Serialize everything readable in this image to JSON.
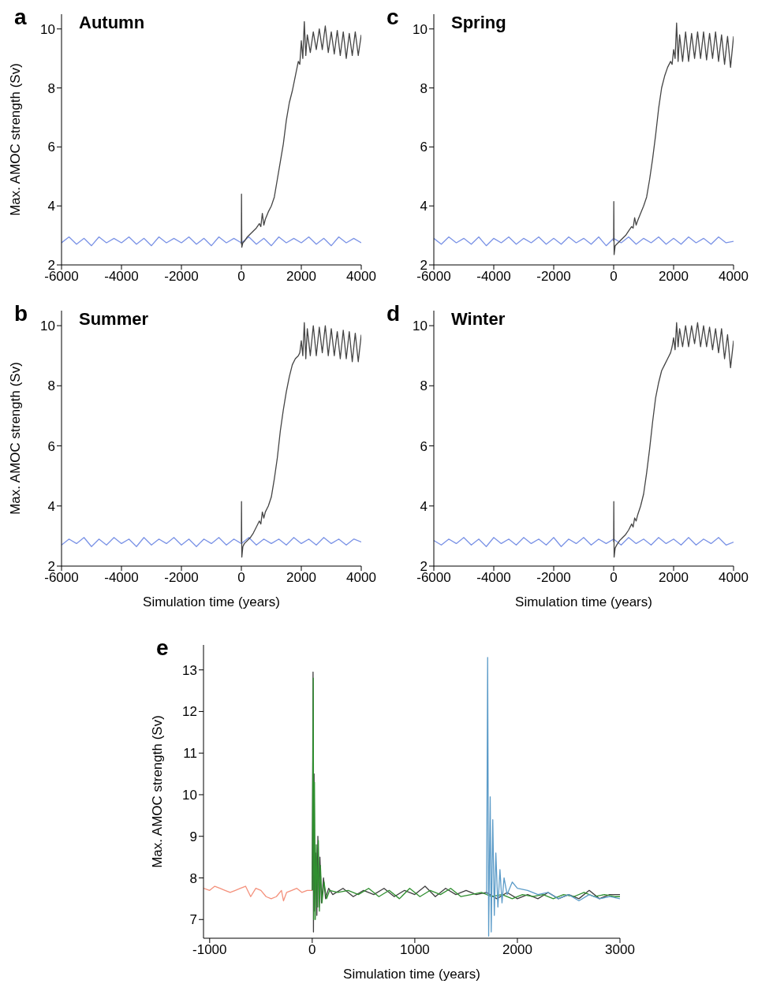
{
  "chart_data": [
    {
      "type": "line",
      "title": "Autumn",
      "annotations": [
        "a"
      ],
      "ylabel": "Max. AMOC strength (Sv)",
      "xlim": [
        -6000,
        4000
      ],
      "xticks": [
        -6000,
        -4000,
        -2000,
        0,
        2000,
        4000
      ],
      "ylim": [
        2,
        10.5
      ],
      "yticks": [
        2,
        4,
        6,
        8,
        10
      ],
      "series": [
        {
          "color": "#7b93e6",
          "x": [
            -6000,
            -5750,
            -5500,
            -5250,
            -5000,
            -4750,
            -4500,
            -4250,
            -4000,
            -3750,
            -3500,
            -3250,
            -3000,
            -2750,
            -2500,
            -2250,
            -2000,
            -1750,
            -1500,
            -1250,
            -1000,
            -750,
            -500,
            -250,
            0,
            250,
            500,
            750,
            1000,
            1250,
            1500,
            1750,
            2000,
            2250,
            2500,
            2750,
            3000,
            3250,
            3500,
            3750,
            4000
          ],
          "values": [
            2.75,
            2.95,
            2.7,
            2.9,
            2.65,
            2.95,
            2.75,
            2.9,
            2.75,
            2.95,
            2.7,
            2.9,
            2.65,
            2.95,
            2.75,
            2.9,
            2.75,
            2.95,
            2.7,
            2.9,
            2.65,
            2.95,
            2.75,
            2.9,
            2.75,
            2.95,
            2.7,
            2.9,
            2.65,
            2.95,
            2.75,
            2.9,
            2.75,
            2.95,
            2.7,
            2.9,
            2.65,
            2.95,
            2.75,
            2.9,
            2.75
          ]
        },
        {
          "color": "#454545",
          "x": [
            0,
            5,
            15,
            50,
            100,
            200,
            300,
            400,
            500,
            600,
            650,
            700,
            750,
            800,
            900,
            1000,
            1100,
            1200,
            1300,
            1400,
            1500,
            1600,
            1700,
            1800,
            1900,
            1950,
            2000,
            2050,
            2100,
            2150,
            2200,
            2300,
            2400,
            2500,
            2600,
            2700,
            2800,
            2900,
            3000,
            3100,
            3200,
            3300,
            3400,
            3500,
            3600,
            3700,
            3800,
            3900,
            4000
          ],
          "values": [
            2.7,
            4.4,
            2.6,
            2.75,
            2.8,
            2.95,
            3.05,
            3.15,
            3.25,
            3.4,
            3.3,
            3.75,
            3.35,
            3.55,
            3.8,
            4.0,
            4.3,
            4.9,
            5.5,
            6.1,
            6.9,
            7.5,
            7.9,
            8.4,
            8.9,
            8.8,
            9.6,
            9.0,
            10.25,
            9.1,
            9.8,
            9.2,
            9.9,
            9.3,
            10.0,
            9.3,
            10.1,
            9.2,
            9.9,
            9.15,
            9.95,
            9.1,
            9.9,
            9.0,
            9.85,
            9.1,
            9.9,
            9.1,
            9.8
          ]
        }
      ]
    },
    {
      "type": "line",
      "title": "Spring",
      "annotations": [
        "c"
      ],
      "xlim": [
        -6000,
        4000
      ],
      "xticks": [
        -6000,
        -4000,
        -2000,
        0,
        2000,
        4000
      ],
      "ylim": [
        2,
        10.5
      ],
      "yticks": [
        2,
        4,
        6,
        8,
        10
      ],
      "series": [
        {
          "color": "#7b93e6",
          "x": [
            -6000,
            -5750,
            -5500,
            -5250,
            -5000,
            -4750,
            -4500,
            -4250,
            -4000,
            -3750,
            -3500,
            -3250,
            -3000,
            -2750,
            -2500,
            -2250,
            -2000,
            -1750,
            -1500,
            -1250,
            -1000,
            -750,
            -500,
            -250,
            0,
            250,
            500,
            750,
            1000,
            1250,
            1500,
            1750,
            2000,
            2250,
            2500,
            2750,
            3000,
            3250,
            3500,
            3750,
            4000
          ],
          "values": [
            2.9,
            2.7,
            2.95,
            2.75,
            2.9,
            2.7,
            2.95,
            2.65,
            2.9,
            2.75,
            2.95,
            2.7,
            2.9,
            2.75,
            2.95,
            2.7,
            2.9,
            2.7,
            2.95,
            2.75,
            2.9,
            2.7,
            2.95,
            2.65,
            2.9,
            2.75,
            2.95,
            2.7,
            2.9,
            2.75,
            2.95,
            2.7,
            2.9,
            2.7,
            2.95,
            2.75,
            2.9,
            2.7,
            2.95,
            2.75,
            2.8
          ]
        },
        {
          "color": "#454545",
          "x": [
            0,
            5,
            15,
            50,
            100,
            200,
            300,
            400,
            500,
            600,
            650,
            700,
            750,
            800,
            900,
            1000,
            1100,
            1200,
            1300,
            1400,
            1500,
            1600,
            1700,
            1800,
            1900,
            1950,
            2000,
            2050,
            2100,
            2150,
            2200,
            2300,
            2400,
            2500,
            2600,
            2700,
            2800,
            2900,
            3000,
            3100,
            3200,
            3300,
            3400,
            3500,
            3600,
            3700,
            3800,
            3900,
            4000
          ],
          "values": [
            2.8,
            4.15,
            2.35,
            2.65,
            2.7,
            2.8,
            2.9,
            3.0,
            3.15,
            3.3,
            3.25,
            3.6,
            3.35,
            3.5,
            3.75,
            4.0,
            4.3,
            4.9,
            5.6,
            6.4,
            7.3,
            8.0,
            8.4,
            8.7,
            8.9,
            8.8,
            9.3,
            9.0,
            10.2,
            8.9,
            9.8,
            8.9,
            9.9,
            8.9,
            9.85,
            9.0,
            9.9,
            9.0,
            9.9,
            8.95,
            9.85,
            9.0,
            9.9,
            8.9,
            9.8,
            8.8,
            9.75,
            8.7,
            9.75
          ]
        }
      ]
    },
    {
      "type": "line",
      "title": "Summer",
      "annotations": [
        "b"
      ],
      "xlabel": "Simulation time (years)",
      "ylabel": "Max. AMOC strength (Sv)",
      "xlim": [
        -6000,
        4000
      ],
      "xticks": [
        -6000,
        -4000,
        -2000,
        0,
        2000,
        4000
      ],
      "ylim": [
        2,
        10.5
      ],
      "yticks": [
        2,
        4,
        6,
        8,
        10
      ],
      "series": [
        {
          "color": "#7b93e6",
          "x": [
            -6000,
            -5750,
            -5500,
            -5250,
            -5000,
            -4750,
            -4500,
            -4250,
            -4000,
            -3750,
            -3500,
            -3250,
            -3000,
            -2750,
            -2500,
            -2250,
            -2000,
            -1750,
            -1500,
            -1250,
            -1000,
            -750,
            -500,
            -250,
            0,
            250,
            500,
            750,
            1000,
            1250,
            1500,
            1750,
            2000,
            2250,
            2500,
            2750,
            3000,
            3250,
            3500,
            3750,
            4000
          ],
          "values": [
            2.7,
            2.9,
            2.75,
            2.95,
            2.65,
            2.9,
            2.7,
            2.95,
            2.75,
            2.9,
            2.65,
            2.95,
            2.7,
            2.9,
            2.75,
            2.95,
            2.7,
            2.9,
            2.65,
            2.9,
            2.75,
            2.95,
            2.7,
            2.9,
            2.75,
            2.95,
            2.7,
            2.9,
            2.75,
            2.9,
            2.7,
            2.95,
            2.75,
            2.9,
            2.7,
            2.95,
            2.75,
            2.9,
            2.7,
            2.9,
            2.8
          ]
        },
        {
          "color": "#454545",
          "x": [
            0,
            5,
            15,
            50,
            100,
            200,
            300,
            400,
            500,
            600,
            650,
            700,
            750,
            800,
            900,
            1000,
            1100,
            1200,
            1300,
            1400,
            1500,
            1600,
            1700,
            1800,
            1900,
            1950,
            2000,
            2050,
            2100,
            2150,
            2200,
            2300,
            2400,
            2500,
            2600,
            2700,
            2800,
            2900,
            3000,
            3100,
            3200,
            3300,
            3400,
            3500,
            3600,
            3700,
            3800,
            3900,
            4000
          ],
          "values": [
            2.8,
            4.15,
            2.3,
            2.65,
            2.75,
            2.85,
            2.95,
            3.1,
            3.3,
            3.5,
            3.4,
            3.8,
            3.6,
            3.8,
            4.0,
            4.3,
            4.9,
            5.6,
            6.5,
            7.2,
            7.8,
            8.3,
            8.7,
            8.9,
            9.0,
            9.1,
            9.5,
            9.0,
            10.1,
            8.9,
            9.9,
            9.0,
            10.0,
            9.0,
            9.95,
            9.1,
            10.0,
            9.0,
            9.9,
            9.0,
            9.8,
            8.9,
            9.85,
            8.9,
            9.8,
            8.8,
            9.75,
            8.8,
            9.7
          ]
        }
      ]
    },
    {
      "type": "line",
      "title": "Winter",
      "annotations": [
        "d"
      ],
      "xlabel": "Simulation time (years)",
      "xlim": [
        -6000,
        4000
      ],
      "xticks": [
        -6000,
        -4000,
        -2000,
        0,
        2000,
        4000
      ],
      "ylim": [
        2,
        10.5
      ],
      "yticks": [
        2,
        4,
        6,
        8,
        10
      ],
      "series": [
        {
          "color": "#7b93e6",
          "x": [
            -6000,
            -5750,
            -5500,
            -5250,
            -5000,
            -4750,
            -4500,
            -4250,
            -4000,
            -3750,
            -3500,
            -3250,
            -3000,
            -2750,
            -2500,
            -2250,
            -2000,
            -1750,
            -1500,
            -1250,
            -1000,
            -750,
            -500,
            -250,
            0,
            250,
            500,
            750,
            1000,
            1250,
            1500,
            1750,
            2000,
            2250,
            2500,
            2750,
            3000,
            3250,
            3500,
            3750,
            4000
          ],
          "values": [
            2.85,
            2.7,
            2.9,
            2.75,
            2.95,
            2.7,
            2.9,
            2.65,
            2.95,
            2.75,
            2.9,
            2.7,
            2.95,
            2.75,
            2.9,
            2.7,
            2.95,
            2.65,
            2.9,
            2.75,
            2.95,
            2.7,
            2.9,
            2.75,
            2.9,
            2.7,
            2.95,
            2.75,
            2.9,
            2.7,
            2.95,
            2.75,
            2.9,
            2.7,
            2.95,
            2.7,
            2.9,
            2.75,
            2.95,
            2.7,
            2.8
          ]
        },
        {
          "color": "#454545",
          "x": [
            0,
            5,
            15,
            50,
            100,
            200,
            300,
            400,
            500,
            600,
            650,
            700,
            750,
            800,
            900,
            1000,
            1100,
            1200,
            1300,
            1400,
            1500,
            1600,
            1700,
            1800,
            1900,
            1950,
            2000,
            2050,
            2100,
            2150,
            2200,
            2300,
            2400,
            2500,
            2600,
            2700,
            2800,
            2900,
            3000,
            3100,
            3200,
            3300,
            3400,
            3500,
            3600,
            3700,
            3800,
            3900,
            4000
          ],
          "values": [
            2.8,
            4.15,
            2.3,
            2.6,
            2.7,
            2.85,
            2.95,
            3.05,
            3.2,
            3.4,
            3.3,
            3.6,
            3.5,
            3.7,
            4.0,
            4.4,
            5.1,
            5.9,
            6.8,
            7.6,
            8.1,
            8.5,
            8.7,
            8.9,
            9.1,
            9.3,
            9.6,
            9.2,
            10.1,
            9.3,
            9.9,
            9.3,
            10.0,
            9.3,
            10.0,
            9.4,
            10.1,
            9.3,
            10.0,
            9.3,
            9.95,
            9.2,
            9.9,
            9.1,
            9.9,
            8.9,
            9.7,
            8.6,
            9.5
          ]
        }
      ]
    },
    {
      "type": "line",
      "annotations": [
        "e"
      ],
      "xlabel": "Simulation time (years)",
      "ylabel": "Max. AMOC strength (Sv)",
      "xlim": [
        -1060,
        3000
      ],
      "xticks": [
        -1000,
        0,
        1000,
        2000,
        3000
      ],
      "ylim": [
        6.55,
        13.6
      ],
      "yticks": [
        7,
        8,
        9,
        10,
        11,
        12,
        13
      ],
      "series": [
        {
          "color": "#f4917c",
          "x": [
            -1060,
            -1000,
            -950,
            -900,
            -850,
            -800,
            -750,
            -700,
            -650,
            -600,
            -550,
            -500,
            -450,
            -400,
            -350,
            -300,
            -280,
            -250,
            -200,
            -150,
            -100,
            -50,
            0
          ],
          "values": [
            7.75,
            7.7,
            7.8,
            7.75,
            7.7,
            7.65,
            7.7,
            7.75,
            7.8,
            7.55,
            7.75,
            7.7,
            7.55,
            7.5,
            7.55,
            7.7,
            7.45,
            7.65,
            7.7,
            7.75,
            7.65,
            7.7,
            7.7
          ]
        },
        {
          "color": "#3f3f3f",
          "x": [
            0,
            8,
            12,
            18,
            25,
            35,
            45,
            55,
            65,
            75,
            90,
            110,
            130,
            160,
            200,
            300,
            400,
            500,
            600,
            700,
            800,
            900,
            1000,
            1100,
            1200,
            1300,
            1400,
            1500,
            1600,
            1700,
            1800,
            1900,
            2000,
            2100,
            2200,
            2300,
            2400,
            2500,
            2600,
            2700,
            2800,
            2900,
            3000
          ],
          "values": [
            7.7,
            12.95,
            6.7,
            10.5,
            7.2,
            8.6,
            7.1,
            9.0,
            7.3,
            8.5,
            7.4,
            8.0,
            7.5,
            7.75,
            7.6,
            7.75,
            7.55,
            7.7,
            7.6,
            7.75,
            7.55,
            7.7,
            7.6,
            7.8,
            7.55,
            7.75,
            7.6,
            7.7,
            7.6,
            7.65,
            7.5,
            7.65,
            7.5,
            7.6,
            7.5,
            7.65,
            7.5,
            7.6,
            7.5,
            7.7,
            7.5,
            7.6,
            7.6
          ]
        },
        {
          "color": "#2f8f2f",
          "x": [
            0,
            10,
            15,
            22,
            30,
            40,
            50,
            60,
            70,
            80,
            95,
            115,
            140,
            170,
            250,
            350,
            450,
            550,
            650,
            750,
            850,
            950,
            1050,
            1150,
            1250,
            1350,
            1450,
            1550,
            1650,
            1750,
            1850,
            1950,
            2050,
            2150,
            2250,
            2350,
            2450,
            2550,
            2650,
            2750,
            2850,
            2950,
            3000
          ],
          "values": [
            7.7,
            12.8,
            7.0,
            10.3,
            7.0,
            8.8,
            7.3,
            8.9,
            7.2,
            8.3,
            7.4,
            7.9,
            7.5,
            7.7,
            7.65,
            7.7,
            7.6,
            7.75,
            7.55,
            7.7,
            7.5,
            7.75,
            7.55,
            7.7,
            7.6,
            7.75,
            7.55,
            7.6,
            7.65,
            7.55,
            7.6,
            7.5,
            7.6,
            7.55,
            7.6,
            7.5,
            7.6,
            7.55,
            7.65,
            7.55,
            7.6,
            7.55,
            7.55
          ]
        },
        {
          "color": "#5b9bc8",
          "x": [
            1700,
            1710,
            1720,
            1735,
            1745,
            1760,
            1775,
            1790,
            1810,
            1830,
            1850,
            1870,
            1900,
            1950,
            2000,
            2100,
            2200,
            2300,
            2400,
            2500,
            2600,
            2700,
            2800,
            2900,
            3000
          ],
          "values": [
            7.6,
            13.3,
            6.6,
            9.95,
            6.7,
            9.4,
            7.1,
            8.6,
            7.3,
            8.2,
            7.4,
            8.0,
            7.6,
            7.9,
            7.75,
            7.7,
            7.6,
            7.65,
            7.5,
            7.6,
            7.45,
            7.6,
            7.5,
            7.55,
            7.5
          ]
        }
      ]
    }
  ]
}
